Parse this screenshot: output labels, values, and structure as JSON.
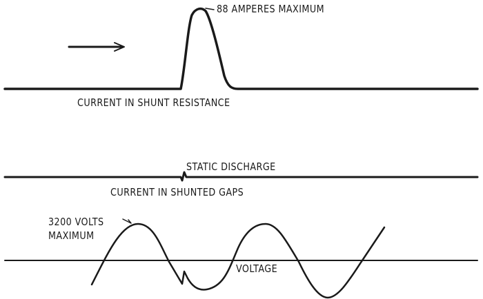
{
  "labels": {
    "peak_current": "88 AMPERES MAXIMUM",
    "trace1": "CURRENT IN SHUNT RESISTANCE",
    "static": "STATIC DISCHARGE",
    "trace2": "CURRENT IN SHUNTED GAPS",
    "peak_voltage_1": "3200 VOLTS",
    "peak_voltage_2": "MAXIMUM",
    "trace3": "VOLTAGE"
  },
  "colors": {
    "ink": "#1a1a1a",
    "background": "#ffffff"
  }
}
